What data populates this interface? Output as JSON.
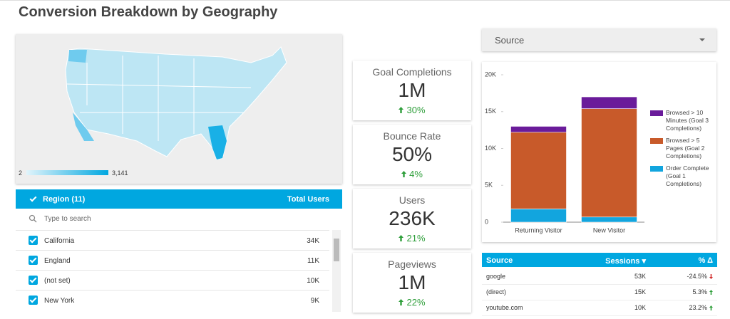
{
  "header": {
    "title": "Conversion Breakdown by Geography"
  },
  "map": {
    "legend_min": "2",
    "legend_max": "3,141"
  },
  "region_table": {
    "header": "Region (11)",
    "metric": "Total Users",
    "search_placeholder": "Type to search",
    "rows": [
      [
        "California",
        "34K"
      ],
      [
        "England",
        "11K"
      ],
      [
        "(not set)",
        "10K"
      ],
      [
        "New York",
        "9K"
      ]
    ]
  },
  "scorecards": [
    {
      "title": "Goal Completions",
      "value": "1M",
      "delta": "30%"
    },
    {
      "title": "Bounce Rate",
      "value": "50%",
      "delta": "4%"
    },
    {
      "title": "Users",
      "value": "236K",
      "delta": "21%"
    },
    {
      "title": "Pageviews",
      "value": "1M",
      "delta": "22%"
    }
  ],
  "source_filter": {
    "label": "Source"
  },
  "chart_data": {
    "type": "stacked-bar",
    "categories": [
      "Returning Visitor",
      "New Visitor"
    ],
    "series": [
      {
        "name": "Order Complete (Goal 1 Completions)",
        "color": "#12a5de",
        "values": [
          1800,
          700
        ]
      },
      {
        "name": "Browsed > 5 Pages (Goal 2 Completions)",
        "color": "#c85a2a",
        "values": [
          10400,
          14700
        ]
      },
      {
        "name": "Browsed > 10 Minutes (Goal 3 Completions)",
        "color": "#6a1b9a",
        "values": [
          800,
          1600
        ]
      }
    ],
    "ylim": [
      0,
      20000
    ],
    "yticks": [
      0,
      {
        "value": 5000,
        "label": "5K"
      },
      {
        "value": 10000,
        "label": "10K"
      },
      {
        "value": 15000,
        "label": "15K"
      },
      {
        "value": 20000,
        "label": "20K"
      }
    ],
    "legend": "right"
  },
  "source_table": {
    "columns": [
      "Source",
      "Sessions ▾",
      "% Δ"
    ],
    "rows": [
      [
        "google",
        "53K",
        "-24.5%"
      ],
      [
        "(direct)",
        "15K",
        "5.3%"
      ],
      [
        "youtube.com",
        "10K",
        "23.2%"
      ]
    ]
  }
}
